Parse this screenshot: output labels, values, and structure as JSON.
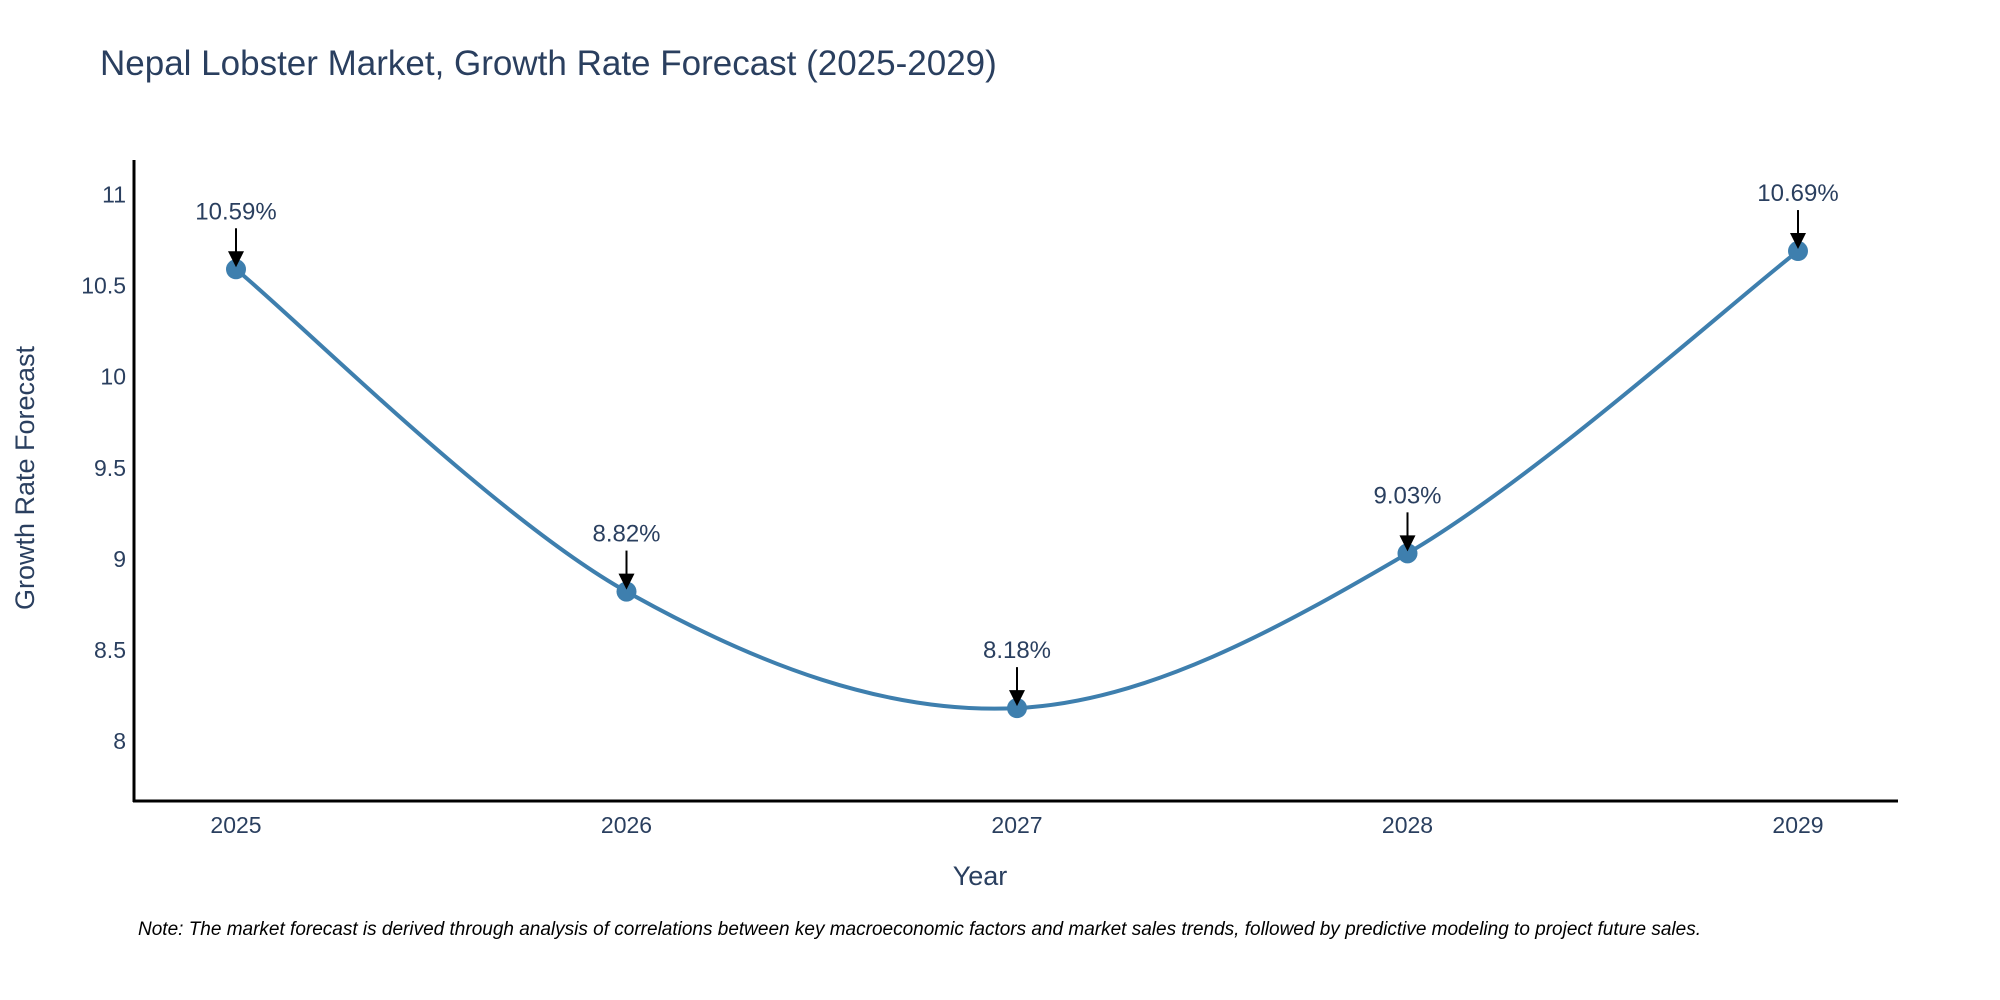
{
  "chart_data": {
    "type": "line",
    "title": "Nepal Lobster Market, Growth Rate Forecast (2025-2029)",
    "xlabel": "Year",
    "ylabel": "Growth Rate Forecast",
    "categories": [
      "2025",
      "2026",
      "2027",
      "2028",
      "2029"
    ],
    "series": [
      {
        "name": "Growth Rate Forecast",
        "values": [
          10.59,
          8.82,
          8.18,
          9.03,
          10.69
        ],
        "data_labels": [
          "10.59%",
          "8.82%",
          "8.18%",
          "9.03%",
          "10.69%"
        ]
      }
    ],
    "yticks": [
      "8",
      "8.5",
      "9",
      "9.5",
      "10",
      "10.5",
      "11"
    ],
    "ylim": [
      7.67,
      11.19
    ],
    "grid": false,
    "line_shape": "spline",
    "line_color": "#3e7fae",
    "marker_color": "#3e7fae",
    "arrow_color": "#000000"
  },
  "footnote": "Note: The market forecast is derived through analysis of correlations between key macroeconomic factors and market sales trends, followed by predictive modeling to project future sales."
}
